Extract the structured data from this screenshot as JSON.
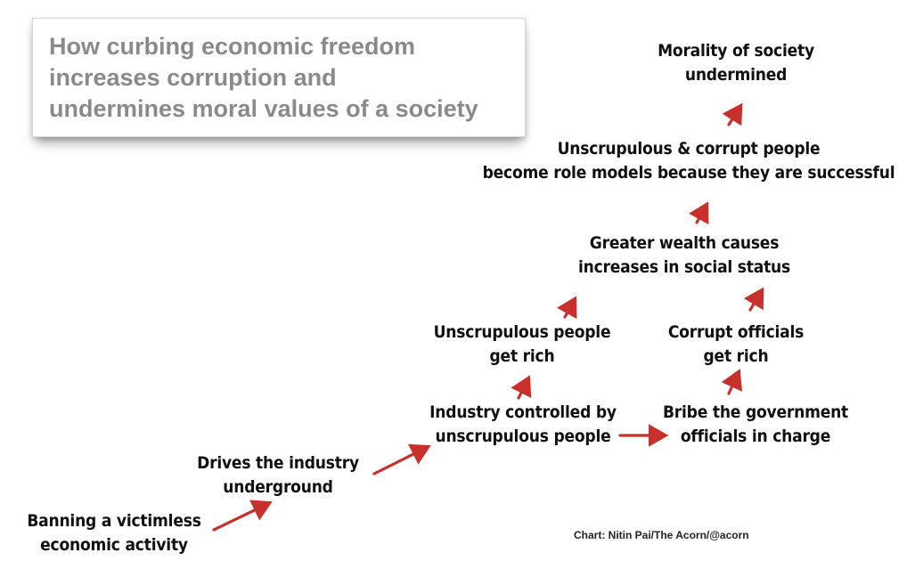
{
  "title": "How curbing economic freedom\nincreases corruption and\nundermines moral values of a society",
  "nodes": {
    "banning": "Banning a victimless\neconomic activity",
    "underground": "Drives the industry\nunderground",
    "industry": "Industry controlled by\nunscrupulous people",
    "bribe": "Bribe the government\nofficials in charge",
    "unscrupulous_rich": "Unscrupulous people\nget rich",
    "officials_rich": "Corrupt officials\nget rich",
    "wealth": "Greater wealth causes\nincreases in social status",
    "role_models": "Unscrupulous & corrupt people\nbecome role models because they are successful",
    "morality": "Morality of society\nundermined"
  },
  "credit": "Chart: Nitin Pai/The Acorn/@acorn",
  "colors": {
    "arrow": "#c8312b",
    "title": "#8a8a8a",
    "text": "#111111"
  }
}
